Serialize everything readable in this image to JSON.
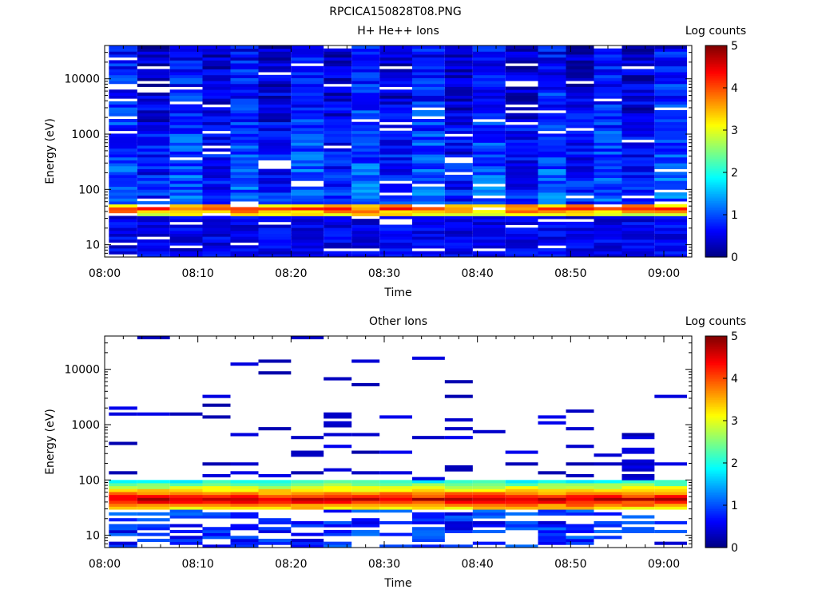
{
  "figure_title": "RPCICA150828T08.PNG",
  "chart_data": [
    {
      "type": "heatmap",
      "title": "H+ He++ Ions",
      "xlabel": "Time",
      "ylabel": "Energy (eV)",
      "y_scale": "log",
      "ylim": [
        6,
        40000
      ],
      "x_range": [
        "08:00",
        "09:03"
      ],
      "x_ticks": [
        "08:00",
        "08:10",
        "08:20",
        "08:30",
        "08:40",
        "08:50",
        "09:00"
      ],
      "y_ticks": [
        "10",
        "100",
        "1000",
        "10000"
      ],
      "colorbar": {
        "label": "Log counts",
        "range": [
          0,
          5
        ],
        "ticks": [
          "0",
          "1",
          "2",
          "3",
          "4",
          "5"
        ]
      },
      "time_columns": [
        "08:02",
        "08:05",
        "08:09",
        "08:12",
        "08:15",
        "08:18",
        "08:22",
        "08:25",
        "08:28",
        "08:31",
        "08:35",
        "08:38",
        "08:41",
        "08:45",
        "08:48",
        "08:51",
        "08:54",
        "08:57",
        "09:01"
      ],
      "peak_energy_eV": 45,
      "peak_log_counts": 4.0
    },
    {
      "type": "heatmap",
      "title": "Other Ions",
      "xlabel": "Time",
      "ylabel": "Energy (eV)",
      "y_scale": "log",
      "ylim": [
        6,
        40000
      ],
      "x_range": [
        "08:00",
        "09:03"
      ],
      "x_ticks": [
        "08:00",
        "08:10",
        "08:20",
        "08:30",
        "08:40",
        "08:50",
        "09:00"
      ],
      "y_ticks": [
        "10",
        "100",
        "1000",
        "10000"
      ],
      "colorbar": {
        "label": "Log counts",
        "range": [
          0,
          5
        ],
        "ticks": [
          "0",
          "1",
          "2",
          "3",
          "4",
          "5"
        ]
      },
      "time_columns": [
        "08:02",
        "08:05",
        "08:09",
        "08:12",
        "08:15",
        "08:18",
        "08:22",
        "08:25",
        "08:28",
        "08:31",
        "08:35",
        "08:38",
        "08:41",
        "08:45",
        "08:48",
        "08:51",
        "08:54",
        "08:57",
        "09:01"
      ],
      "peak_energy_eV": 45,
      "peak_log_counts": 4.6
    }
  ]
}
